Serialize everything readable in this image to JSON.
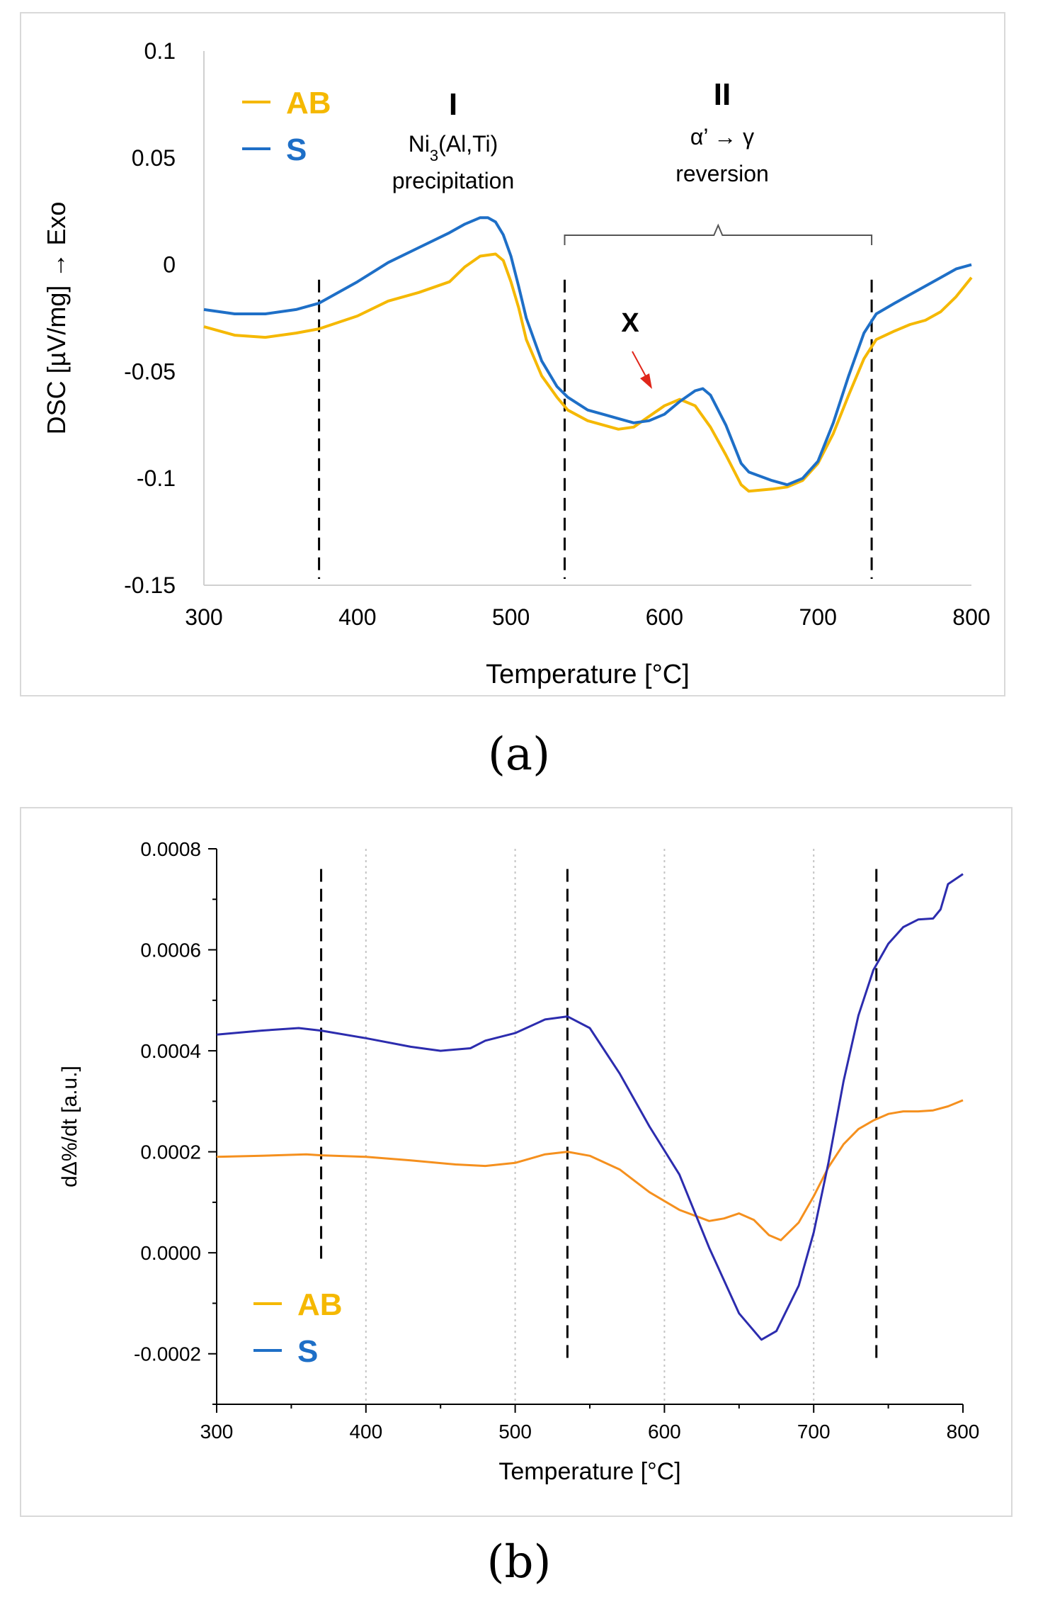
{
  "chart_data": [
    {
      "type": "line",
      "panel": "a",
      "xlabel": "Temperature [°C]",
      "ylabel": "DSC [µV/mg] → Exo",
      "xlim": [
        300,
        800
      ],
      "ylim": [
        -0.15,
        0.1
      ],
      "x_ticks": [
        300,
        400,
        500,
        600,
        700,
        800
      ],
      "x_tick_labels": [
        "300",
        "400",
        "500",
        "600",
        "700",
        "800"
      ],
      "y_ticks": [
        -0.15,
        -0.1,
        -0.05,
        0,
        0.05,
        0.1
      ],
      "y_tick_labels": [
        "-0.15",
        "-0.1",
        "-0.05",
        "0",
        "0.05",
        "0.1"
      ],
      "grid": false,
      "legend": "top-left",
      "legend_colors": [
        "#f5b800",
        "#1e6fc7"
      ],
      "series": [
        {
          "name": "AB",
          "color": "#f5b800",
          "x": [
            300,
            320,
            340,
            360,
            375,
            400,
            420,
            440,
            460,
            470,
            480,
            490,
            495,
            500,
            505,
            510,
            520,
            530,
            537,
            550,
            560,
            570,
            580,
            590,
            600,
            610,
            620,
            630,
            640,
            650,
            655,
            670,
            680,
            690,
            700,
            710,
            720,
            730,
            738,
            750,
            760,
            770,
            780,
            790,
            800
          ],
          "values": [
            -0.029,
            -0.033,
            -0.034,
            -0.032,
            -0.03,
            -0.024,
            -0.017,
            -0.013,
            -0.008,
            -0.001,
            0.004,
            0.005,
            0.002,
            -0.008,
            -0.02,
            -0.035,
            -0.052,
            -0.062,
            -0.068,
            -0.073,
            -0.075,
            -0.077,
            -0.076,
            -0.071,
            -0.066,
            -0.063,
            -0.066,
            -0.076,
            -0.089,
            -0.103,
            -0.106,
            -0.105,
            -0.104,
            -0.101,
            -0.093,
            -0.079,
            -0.061,
            -0.044,
            -0.035,
            -0.031,
            -0.028,
            -0.026,
            -0.022,
            -0.015,
            -0.006
          ]
        },
        {
          "name": "S",
          "color": "#1e6fc7",
          "x": [
            300,
            320,
            340,
            360,
            375,
            400,
            420,
            440,
            460,
            470,
            480,
            485,
            490,
            495,
            500,
            505,
            510,
            520,
            530,
            537,
            550,
            560,
            570,
            580,
            590,
            600,
            610,
            620,
            625,
            630,
            640,
            650,
            655,
            670,
            680,
            690,
            700,
            710,
            720,
            730,
            738,
            750,
            760,
            770,
            780,
            790,
            800
          ],
          "values": [
            -0.021,
            -0.023,
            -0.023,
            -0.021,
            -0.018,
            -0.008,
            0.001,
            0.008,
            0.015,
            0.019,
            0.022,
            0.022,
            0.02,
            0.014,
            0.004,
            -0.01,
            -0.025,
            -0.045,
            -0.057,
            -0.062,
            -0.068,
            -0.07,
            -0.072,
            -0.074,
            -0.073,
            -0.07,
            -0.064,
            -0.059,
            -0.058,
            -0.061,
            -0.075,
            -0.093,
            -0.097,
            -0.101,
            -0.103,
            -0.1,
            -0.092,
            -0.074,
            -0.052,
            -0.032,
            -0.023,
            -0.018,
            -0.014,
            -0.01,
            -0.006,
            -0.002,
            0.0
          ]
        }
      ],
      "vlines_x": [
        375,
        535,
        735
      ],
      "annotations": {
        "region1_numeral": "I",
        "region1_formula": "Ni",
        "region1_formula_sub": "3",
        "region1_formula_rest": "(Al,Ti)",
        "region1_text": "precipitation",
        "region2_numeral": "II",
        "region2_formula": "α’ → γ",
        "region2_text": "reversion",
        "marker_label": "X",
        "marker_color": "#e0261a"
      },
      "caption": "(a)"
    },
    {
      "type": "line",
      "panel": "b",
      "xlabel": "Temperature [°C]",
      "ylabel": "dΔ%/dt [a.u.]",
      "xlim": [
        300,
        800
      ],
      "ylim": [
        -0.0003,
        0.0008
      ],
      "x_ticks": [
        300,
        400,
        500,
        600,
        700,
        800
      ],
      "x_tick_labels": [
        "300",
        "400",
        "500",
        "600",
        "700",
        "800"
      ],
      "y_ticks": [
        -0.0002,
        0.0,
        0.0002,
        0.0004,
        0.0006,
        0.0008
      ],
      "y_tick_labels": [
        "-0.0002",
        "0.0000",
        "0.0002",
        "0.0004",
        "0.0006",
        "0.0008"
      ],
      "grid": true,
      "legend": "bottom-left",
      "legend_colors": [
        "#f5b800",
        "#1e6fc7"
      ],
      "series": [
        {
          "name": "AB",
          "color": "#f5901e",
          "x": [
            300,
            330,
            360,
            370,
            400,
            430,
            460,
            480,
            500,
            520,
            535,
            550,
            570,
            590,
            610,
            630,
            640,
            650,
            660,
            670,
            678,
            690,
            700,
            710,
            720,
            730,
            740,
            750,
            760,
            770,
            780,
            790,
            800
          ],
          "values": [
            0.00019,
            0.000192,
            0.000195,
            0.000193,
            0.00019,
            0.000183,
            0.000175,
            0.000172,
            0.000178,
            0.000195,
            0.0002,
            0.000192,
            0.000165,
            0.00012,
            8.5e-05,
            6.3e-05,
            6.8e-05,
            7.8e-05,
            6.5e-05,
            3.5e-05,
            2.5e-05,
            6e-05,
            0.000112,
            0.00017,
            0.000215,
            0.000245,
            0.000262,
            0.000275,
            0.00028,
            0.00028,
            0.000282,
            0.00029,
            0.000302
          ]
        },
        {
          "name": "S",
          "color": "#2c2cae",
          "x": [
            300,
            330,
            355,
            370,
            400,
            430,
            450,
            470,
            480,
            500,
            520,
            535,
            550,
            570,
            590,
            610,
            630,
            650,
            665,
            675,
            690,
            700,
            710,
            720,
            730,
            740,
            750,
            760,
            770,
            780,
            785,
            790,
            800
          ],
          "values": [
            0.000432,
            0.00044,
            0.000445,
            0.00044,
            0.000425,
            0.000408,
            0.0004,
            0.000405,
            0.00042,
            0.000435,
            0.000462,
            0.000468,
            0.000445,
            0.000355,
            0.00025,
            0.000155,
            1e-05,
            -0.00012,
            -0.000172,
            -0.000155,
            -6.5e-05,
            4e-05,
            0.00018,
            0.00034,
            0.00047,
            0.00056,
            0.000612,
            0.000645,
            0.00066,
            0.000662,
            0.00068,
            0.00073,
            0.00075
          ]
        }
      ],
      "vlines": [
        {
          "x": 370,
          "y_from": -2.5e-05,
          "y_to": 0.00076
        },
        {
          "x": 535,
          "y_from": -0.00022,
          "y_to": 0.00076
        },
        {
          "x": 742,
          "y_from": -0.00022,
          "y_to": 0.00076
        }
      ],
      "caption": "(b)"
    }
  ]
}
